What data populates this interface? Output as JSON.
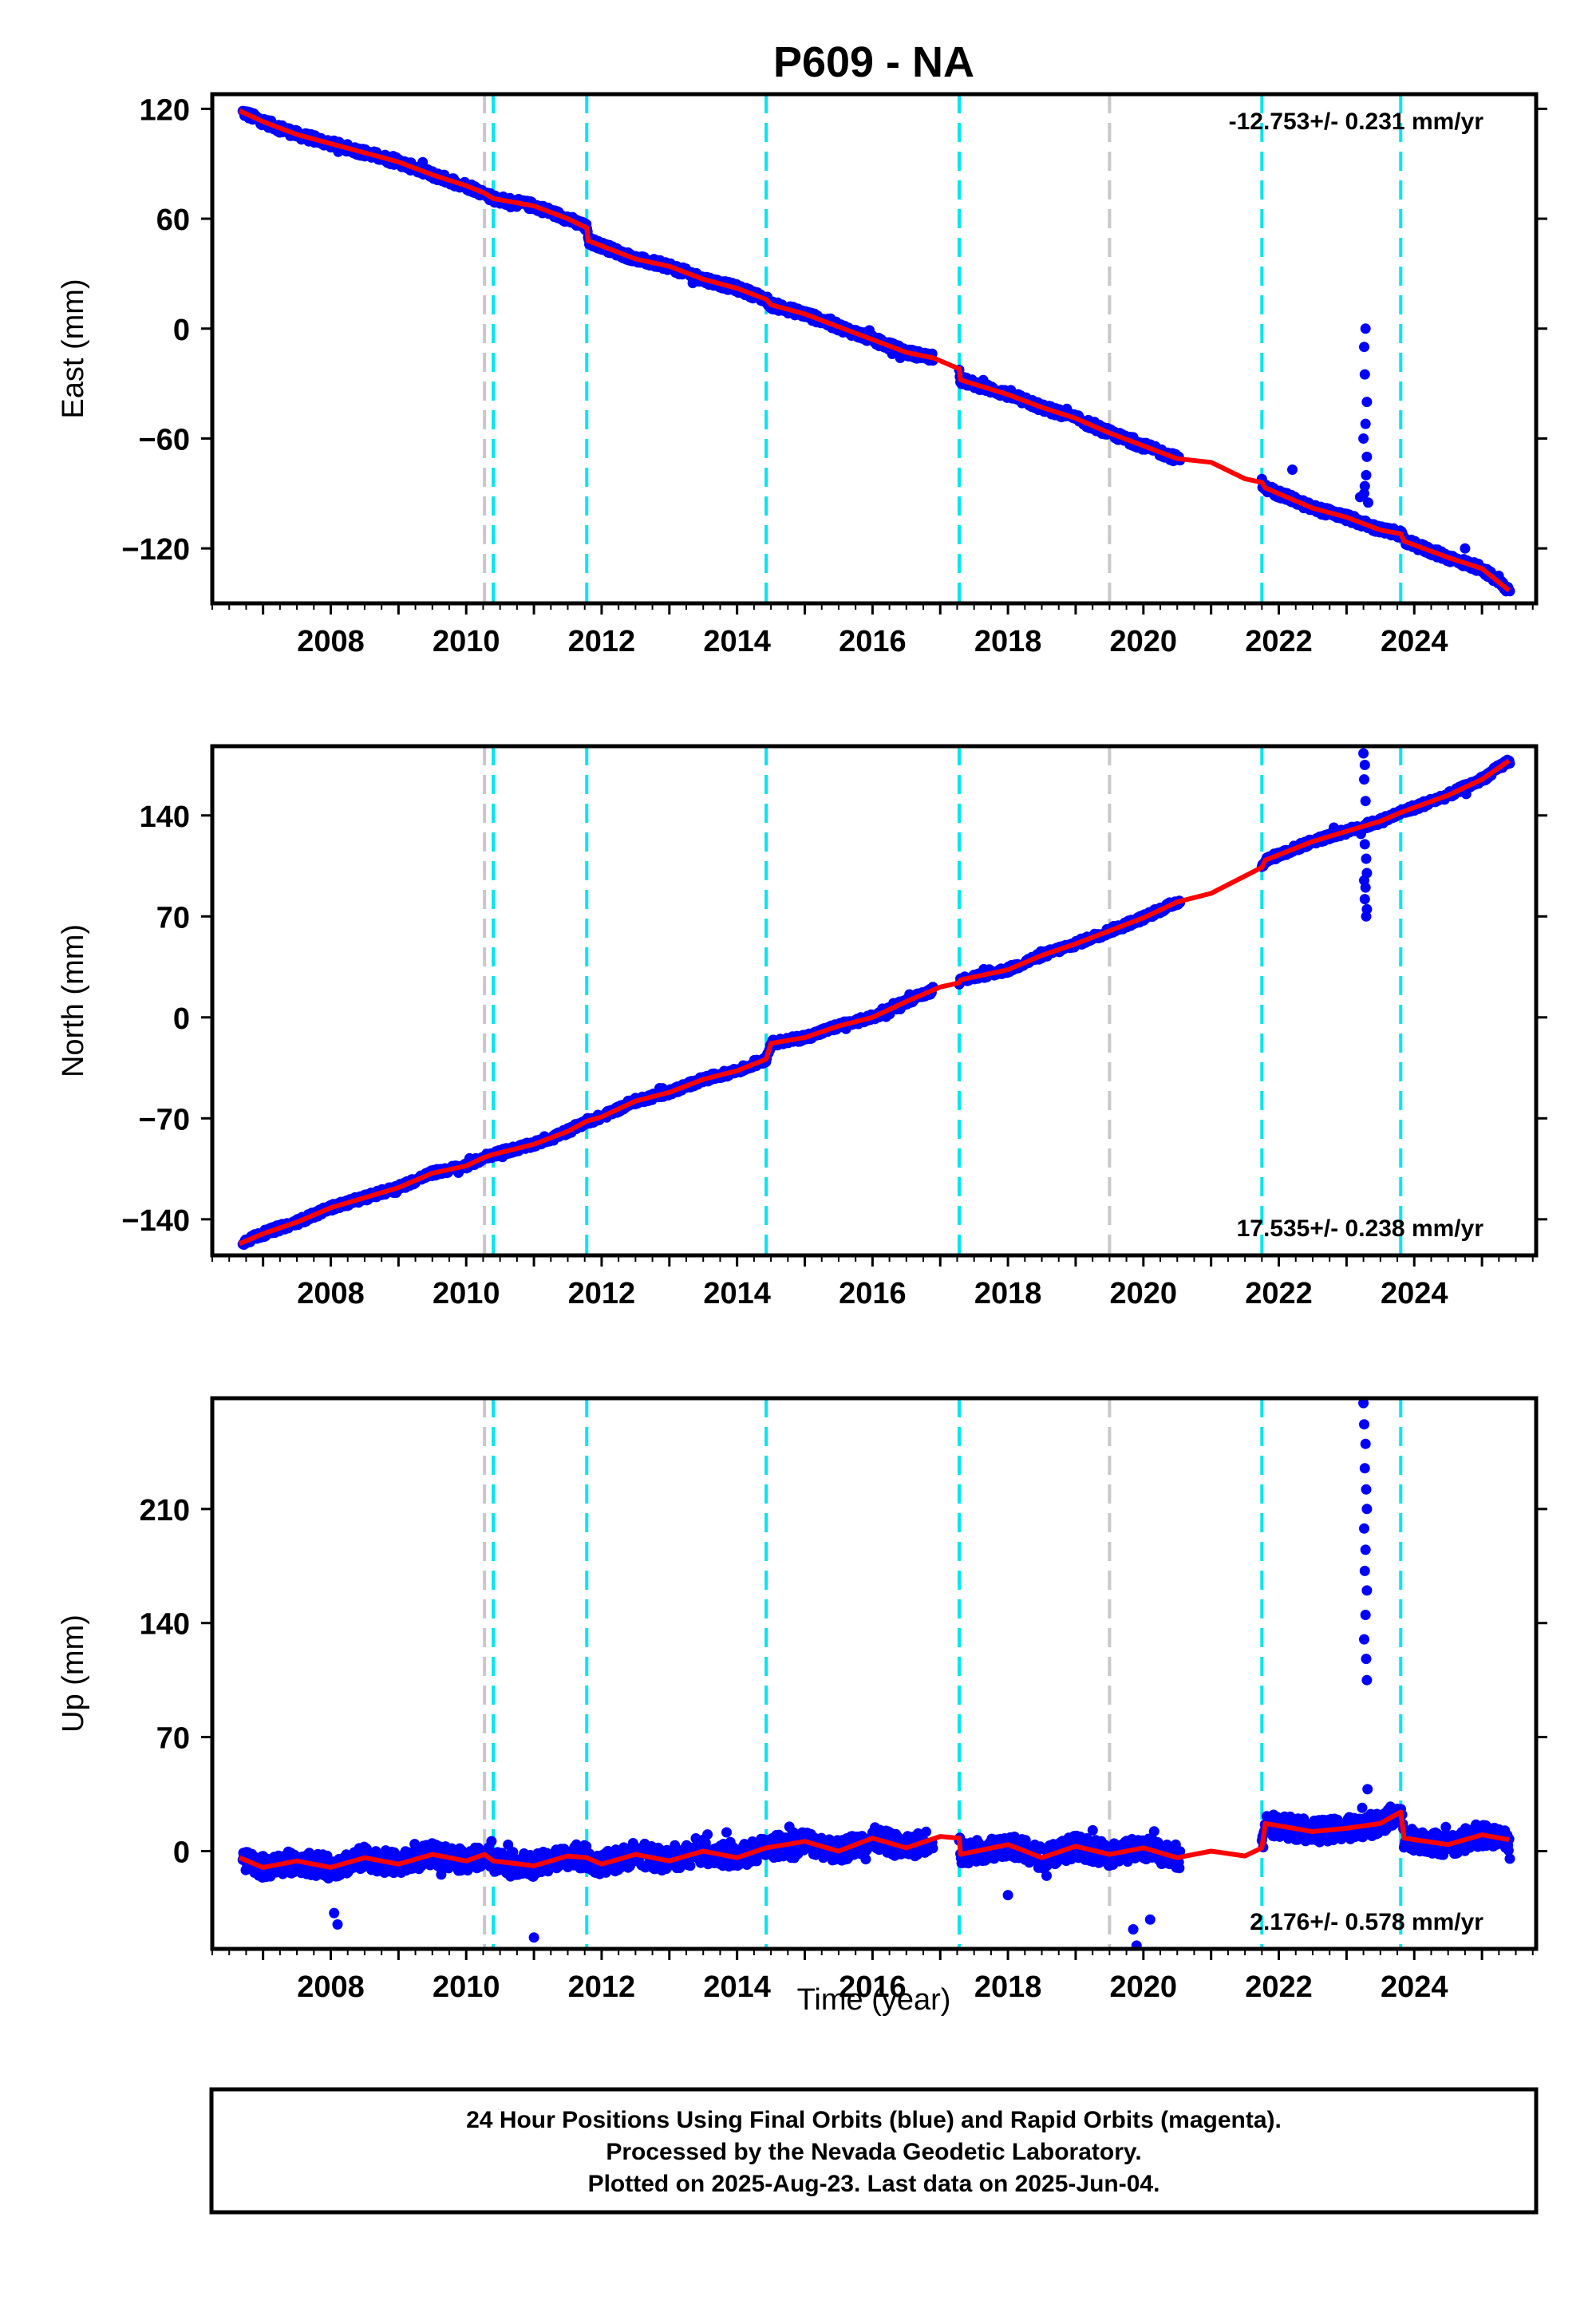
{
  "title": "P609 - NA",
  "x_axis_label": "Time (year)",
  "footer": {
    "line1": "24 Hour Positions Using Final Orbits (blue) and Rapid Orbits (magenta).",
    "line2": "Processed by the Nevada Geodetic Laboratory.",
    "line3": "Plotted on 2025-Aug-23. Last data on 2025-Jun-04."
  },
  "colors": {
    "data": "#0000ff",
    "model": "#ff0000",
    "offset_equipment": "#00e5ee",
    "offset_other": "#c8c8c8"
  },
  "chart_data": [
    {
      "type": "scatter",
      "panel": "east",
      "ylabel": "East (mm)",
      "rate_text": "-12.753+/- 0.231 mm/yr",
      "rate_position": "top-right",
      "xlim": [
        2006.25,
        2025.8
      ],
      "ylim": [
        -150,
        128
      ],
      "x_ticks": [
        2008,
        2010,
        2012,
        2014,
        2016,
        2018,
        2020,
        2022,
        2024
      ],
      "y_ticks": [
        -120,
        -60,
        0,
        60,
        120
      ],
      "offsets_equipment": [
        2010.4,
        2011.78,
        2014.43,
        2017.28,
        2021.75,
        2023.8
      ],
      "offsets_other": [
        2010.27,
        2019.5
      ],
      "model": [
        [
          2006.65,
          119
        ],
        [
          2007,
          113
        ],
        [
          2007.5,
          106
        ],
        [
          2008,
          101
        ],
        [
          2008.5,
          96
        ],
        [
          2009,
          91
        ],
        [
          2009.5,
          84
        ],
        [
          2010,
          78
        ],
        [
          2010.27,
          74
        ],
        [
          2010.4,
          71
        ],
        [
          2011,
          67
        ],
        [
          2011.5,
          60
        ],
        [
          2011.78,
          55
        ],
        [
          2011.8,
          48
        ],
        [
          2012.5,
          38
        ],
        [
          2013,
          34
        ],
        [
          2013.5,
          27
        ],
        [
          2014,
          22
        ],
        [
          2014.43,
          16
        ],
        [
          2014.5,
          13
        ],
        [
          2015,
          8
        ],
        [
          2015.5,
          1
        ],
        [
          2016,
          -6
        ],
        [
          2016.5,
          -13
        ],
        [
          2016.9,
          -16
        ],
        [
          2017.28,
          -22
        ],
        [
          2017.3,
          -28
        ],
        [
          2018,
          -36
        ],
        [
          2018.5,
          -43
        ],
        [
          2019,
          -49
        ],
        [
          2019.5,
          -57
        ],
        [
          2020,
          -64
        ],
        [
          2020.5,
          -71
        ],
        [
          2021,
          -73
        ],
        [
          2021.5,
          -82
        ],
        [
          2021.75,
          -84
        ],
        [
          2021.8,
          -87
        ],
        [
          2022.5,
          -98
        ],
        [
          2023,
          -103
        ],
        [
          2023.5,
          -110
        ],
        [
          2023.8,
          -112
        ],
        [
          2023.85,
          -116
        ],
        [
          2024.5,
          -125
        ],
        [
          2025,
          -131
        ],
        [
          2025.4,
          -143
        ]
      ],
      "segments": [
        [
          2006.7,
          2010.25,
          0
        ],
        [
          2010.3,
          2016.9,
          0
        ],
        [
          2017.28,
          2020.55,
          0
        ],
        [
          2021.75,
          2025.42,
          0
        ]
      ],
      "outliers": [
        [
          2023.28,
          0
        ],
        [
          2023.26,
          -10
        ],
        [
          2023.27,
          -25
        ],
        [
          2023.3,
          -40
        ],
        [
          2023.28,
          -52
        ],
        [
          2023.25,
          -60
        ],
        [
          2023.3,
          -70
        ],
        [
          2023.29,
          -80
        ],
        [
          2023.27,
          -86
        ],
        [
          2023.26,
          -90
        ],
        [
          2023.2,
          -92
        ],
        [
          2023.32,
          -95
        ],
        [
          2022.2,
          -77
        ],
        [
          2024.75,
          -120
        ]
      ]
    },
    {
      "type": "scatter",
      "panel": "north",
      "ylabel": "North (mm)",
      "rate_text": "17.535+/- 0.238 mm/yr",
      "rate_position": "bottom-right",
      "xlim": [
        2006.25,
        2025.8
      ],
      "ylim": [
        -165,
        188
      ],
      "x_ticks": [
        2008,
        2010,
        2012,
        2014,
        2016,
        2018,
        2020,
        2022,
        2024
      ],
      "y_ticks": [
        -140,
        -70,
        0,
        70,
        140
      ],
      "offsets_equipment": [
        2010.4,
        2011.78,
        2014.43,
        2017.28,
        2021.75,
        2023.8
      ],
      "offsets_other": [
        2010.27,
        2019.5
      ],
      "model": [
        [
          2006.65,
          -157
        ],
        [
          2007,
          -150
        ],
        [
          2007.5,
          -142
        ],
        [
          2008,
          -132
        ],
        [
          2008.5,
          -125
        ],
        [
          2009,
          -118
        ],
        [
          2009.5,
          -108
        ],
        [
          2010,
          -103
        ],
        [
          2010.27,
          -97
        ],
        [
          2010.4,
          -95
        ],
        [
          2011,
          -88
        ],
        [
          2011.5,
          -79
        ],
        [
          2011.78,
          -72
        ],
        [
          2012,
          -69
        ],
        [
          2012.5,
          -58
        ],
        [
          2013,
          -52
        ],
        [
          2013.5,
          -43
        ],
        [
          2014,
          -37
        ],
        [
          2014.43,
          -29
        ],
        [
          2014.5,
          -18
        ],
        [
          2015,
          -14
        ],
        [
          2015.5,
          -6
        ],
        [
          2016,
          0
        ],
        [
          2016.5,
          11
        ],
        [
          2017,
          21
        ],
        [
          2017.28,
          24
        ],
        [
          2017.3,
          26
        ],
        [
          2018,
          33
        ],
        [
          2018.5,
          43
        ],
        [
          2019,
          51
        ],
        [
          2019.5,
          60
        ],
        [
          2020,
          69
        ],
        [
          2020.5,
          80
        ],
        [
          2021,
          86
        ],
        [
          2021.5,
          98
        ],
        [
          2021.75,
          104
        ],
        [
          2021.8,
          109
        ],
        [
          2022.5,
          122
        ],
        [
          2023,
          129
        ],
        [
          2023.5,
          136
        ],
        [
          2023.8,
          142
        ],
        [
          2024.5,
          154
        ],
        [
          2025,
          165
        ],
        [
          2025.4,
          178
        ]
      ],
      "segments": [
        [
          2006.7,
          2010.25,
          0
        ],
        [
          2010.3,
          2016.9,
          0
        ],
        [
          2017.28,
          2020.55,
          0
        ],
        [
          2021.75,
          2025.42,
          0
        ]
      ],
      "outliers": [
        [
          2023.25,
          183
        ],
        [
          2023.27,
          175
        ],
        [
          2023.26,
          165
        ],
        [
          2023.28,
          150
        ],
        [
          2023.27,
          120
        ],
        [
          2023.29,
          110
        ],
        [
          2023.3,
          100
        ],
        [
          2023.28,
          90
        ],
        [
          2023.27,
          82
        ],
        [
          2023.3,
          75
        ],
        [
          2023.29,
          70
        ],
        [
          2023.26,
          95
        ]
      ]
    },
    {
      "type": "scatter",
      "panel": "up",
      "ylabel": "Up (mm)",
      "rate_text": "2.176+/- 0.578 mm/yr",
      "rate_position": "bottom-right",
      "xlim": [
        2006.25,
        2025.8
      ],
      "ylim": [
        -60,
        278
      ],
      "x_ticks": [
        2008,
        2010,
        2012,
        2014,
        2016,
        2018,
        2020,
        2022,
        2024
      ],
      "y_ticks": [
        0,
        70,
        140,
        210
      ],
      "offsets_equipment": [
        2010.4,
        2011.78,
        2014.43,
        2017.28,
        2021.75,
        2023.8
      ],
      "offsets_other": [
        2010.27,
        2019.5
      ],
      "model": [
        [
          2006.65,
          -4
        ],
        [
          2007,
          -10
        ],
        [
          2007.5,
          -6
        ],
        [
          2008,
          -10
        ],
        [
          2008.5,
          -4
        ],
        [
          2009,
          -8
        ],
        [
          2009.5,
          -2
        ],
        [
          2010,
          -6
        ],
        [
          2010.27,
          -2
        ],
        [
          2010.4,
          -6
        ],
        [
          2011,
          -9
        ],
        [
          2011.5,
          -3
        ],
        [
          2011.78,
          -4
        ],
        [
          2012,
          -8
        ],
        [
          2012.5,
          -2
        ],
        [
          2013,
          -6
        ],
        [
          2013.5,
          0
        ],
        [
          2014,
          -4
        ],
        [
          2014.43,
          2
        ],
        [
          2015,
          6
        ],
        [
          2015.5,
          0
        ],
        [
          2016,
          8
        ],
        [
          2016.5,
          2
        ],
        [
          2017,
          9
        ],
        [
          2017.28,
          8
        ],
        [
          2017.3,
          -2
        ],
        [
          2018,
          4
        ],
        [
          2018.5,
          -4
        ],
        [
          2019,
          3
        ],
        [
          2019.5,
          -2
        ],
        [
          2020,
          2
        ],
        [
          2020.5,
          -4
        ],
        [
          2021,
          0
        ],
        [
          2021.5,
          -3
        ],
        [
          2021.75,
          2
        ],
        [
          2021.8,
          17
        ],
        [
          2022.5,
          12
        ],
        [
          2023,
          14
        ],
        [
          2023.5,
          17
        ],
        [
          2023.8,
          24
        ],
        [
          2023.85,
          8
        ],
        [
          2024.5,
          4
        ],
        [
          2025,
          10
        ],
        [
          2025.4,
          7
        ]
      ],
      "segments": [
        [
          2006.7,
          2010.25,
          -5
        ],
        [
          2010.3,
          2016.9,
          0
        ],
        [
          2017.28,
          2020.55,
          0
        ],
        [
          2021.75,
          2025.42,
          0
        ]
      ],
      "outliers": [
        [
          2023.25,
          275
        ],
        [
          2023.26,
          262
        ],
        [
          2023.28,
          250
        ],
        [
          2023.27,
          235
        ],
        [
          2023.29,
          222
        ],
        [
          2023.3,
          210
        ],
        [
          2023.26,
          198
        ],
        [
          2023.28,
          185
        ],
        [
          2023.27,
          172
        ],
        [
          2023.3,
          160
        ],
        [
          2023.28,
          145
        ],
        [
          2023.26,
          130
        ],
        [
          2023.29,
          118
        ],
        [
          2023.3,
          105
        ],
        [
          2023.31,
          38
        ],
        [
          2008.1,
          -45
        ],
        [
          2011,
          -53
        ],
        [
          2019.9,
          -58
        ],
        [
          2019.85,
          -48
        ],
        [
          2018,
          -27
        ],
        [
          2020.1,
          -42
        ],
        [
          2008.05,
          -38
        ],
        [
          2015.9,
          -5
        ]
      ]
    }
  ]
}
